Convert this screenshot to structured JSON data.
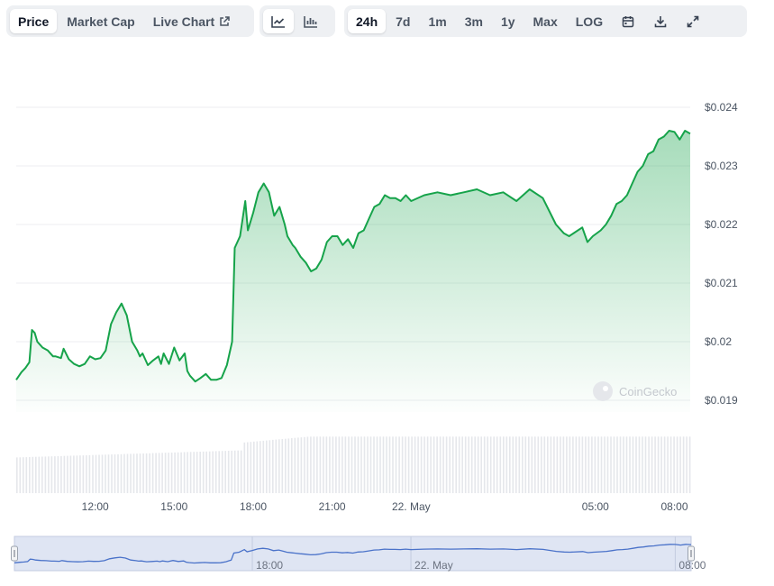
{
  "toolbar": {
    "view_tabs": [
      {
        "label": "Price",
        "active": true
      },
      {
        "label": "Market Cap",
        "active": false
      },
      {
        "label": "Live Chart",
        "active": false,
        "icon": "external-link-icon"
      }
    ],
    "chart_types": [
      {
        "icon": "line-chart-icon",
        "active": true
      },
      {
        "icon": "bar-chart-icon",
        "active": false
      }
    ],
    "ranges": [
      {
        "label": "24h",
        "active": true
      },
      {
        "label": "7d",
        "active": false
      },
      {
        "label": "1m",
        "active": false
      },
      {
        "label": "3m",
        "active": false
      },
      {
        "label": "1y",
        "active": false
      },
      {
        "label": "Max",
        "active": false
      },
      {
        "label": "LOG",
        "active": false
      }
    ],
    "actions": [
      "calendar-icon",
      "download-icon",
      "fullscreen-icon"
    ]
  },
  "watermark": "CoinGecko",
  "colors": {
    "line": "#16a34a",
    "navigator_line": "#4a72c9",
    "navigator_fill": "#dfe5f3"
  },
  "chart_data": {
    "type": "area",
    "y_axis": {
      "ticks": [
        "$0.024",
        "$0.023",
        "$0.022",
        "$0.021",
        "$0.02",
        "$0.019"
      ],
      "tick_values": [
        0.024,
        0.023,
        0.022,
        0.021,
        0.02,
        0.019
      ],
      "range": [
        0.0188,
        0.0246
      ]
    },
    "x_axis": {
      "ticks": [
        "12:00",
        "15:00",
        "18:00",
        "21:00",
        "22. May",
        "05:00",
        "08:00"
      ],
      "tick_hours": [
        3,
        6,
        9,
        12,
        15,
        22,
        25
      ],
      "range_hours": [
        0,
        25.6
      ]
    },
    "grid": true,
    "series": [
      {
        "x": [
          0,
          0.2,
          0.35,
          0.5,
          0.6,
          0.7,
          0.8,
          1.0,
          1.2,
          1.4,
          1.5,
          1.7,
          1.8,
          2.0,
          2.2,
          2.4,
          2.6,
          2.8,
          3.0,
          3.2,
          3.4,
          3.6,
          3.8,
          4.0,
          4.2,
          4.4,
          4.6,
          4.7,
          4.8,
          5.0,
          5.2,
          5.4,
          5.5,
          5.6,
          5.8,
          6.0,
          6.2,
          6.4,
          6.5,
          6.6,
          6.8,
          7.0,
          7.2,
          7.4,
          7.6,
          7.8,
          8.0,
          8.2,
          8.3,
          8.5,
          8.6,
          8.7,
          8.8,
          9.0,
          9.2,
          9.4,
          9.6,
          9.8,
          10.0,
          10.2,
          10.3,
          10.5,
          10.6,
          10.8,
          11.0,
          11.2,
          11.4,
          11.6,
          11.8,
          12.0,
          12.2,
          12.4,
          12.6,
          12.8,
          13.0,
          13.2,
          13.4,
          13.6,
          13.8,
          14.0,
          14.2,
          14.4,
          14.6,
          14.8,
          15.0,
          15.5,
          16.0,
          16.5,
          17.0,
          17.5,
          18.0,
          18.5,
          19.0,
          19.5,
          20.0,
          20.5,
          20.8,
          21.0,
          21.5,
          21.7,
          21.9,
          22.2,
          22.4,
          22.6,
          22.8,
          23.0,
          23.2,
          23.4,
          23.6,
          23.8,
          24.0,
          24.2,
          24.4,
          24.6,
          24.8,
          25.0,
          25.2,
          25.4,
          25.6
        ],
        "y": [
          0.01935,
          0.01948,
          0.01955,
          0.01965,
          0.0202,
          0.02015,
          0.02,
          0.0199,
          0.01985,
          0.01975,
          0.01975,
          0.01972,
          0.01988,
          0.0197,
          0.01962,
          0.01958,
          0.01962,
          0.01975,
          0.0197,
          0.01972,
          0.01985,
          0.0203,
          0.0205,
          0.02065,
          0.02045,
          0.02,
          0.01985,
          0.01975,
          0.0198,
          0.0196,
          0.01968,
          0.01975,
          0.01962,
          0.0198,
          0.01962,
          0.0199,
          0.01968,
          0.0198,
          0.0195,
          0.01942,
          0.01932,
          0.01938,
          0.01945,
          0.01935,
          0.01935,
          0.01938,
          0.0196,
          0.02,
          0.0216,
          0.0218,
          0.0221,
          0.0224,
          0.0219,
          0.0222,
          0.02255,
          0.0227,
          0.02255,
          0.02215,
          0.0223,
          0.022,
          0.0218,
          0.02165,
          0.0216,
          0.02145,
          0.02135,
          0.0212,
          0.02125,
          0.0214,
          0.0217,
          0.0218,
          0.0218,
          0.02165,
          0.02175,
          0.0216,
          0.02185,
          0.0219,
          0.0221,
          0.0223,
          0.02235,
          0.0225,
          0.02245,
          0.02245,
          0.0224,
          0.0225,
          0.0224,
          0.0225,
          0.02255,
          0.0225,
          0.02255,
          0.0226,
          0.0225,
          0.02255,
          0.0224,
          0.0226,
          0.02245,
          0.022,
          0.02185,
          0.0218,
          0.02195,
          0.0217,
          0.0218,
          0.0219,
          0.022,
          0.02215,
          0.02235,
          0.0224,
          0.0225,
          0.0227,
          0.0229,
          0.023,
          0.0232,
          0.02325,
          0.02345,
          0.0235,
          0.0236,
          0.02358,
          0.02345,
          0.0236,
          0.02355
        ]
      }
    ],
    "volume_relative": {
      "before_jump": 0.6,
      "after_jump": 0.95
    },
    "navigator": {
      "ticks": [
        "18:00",
        "22. May",
        "08:00"
      ],
      "tick_hours": [
        9,
        15,
        25
      ]
    }
  }
}
